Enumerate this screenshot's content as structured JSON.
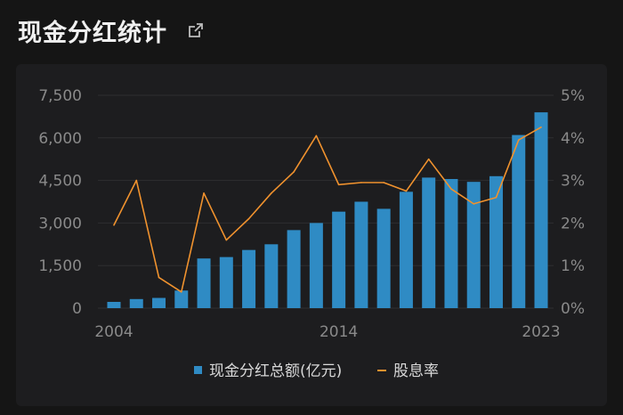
{
  "header": {
    "title": "现金分红统计",
    "share_icon": "share-icon"
  },
  "colors": {
    "bar": "#2f8bc4",
    "line": "#f0922e",
    "grid": "#2e2e30",
    "axis_text": "#8a8a8a"
  },
  "chart_data": {
    "type": "bar+line",
    "title": "",
    "x": [
      2004,
      2005,
      2006,
      2007,
      2008,
      2009,
      2010,
      2011,
      2012,
      2013,
      2014,
      2015,
      2016,
      2017,
      2018,
      2019,
      2020,
      2021,
      2022,
      2023
    ],
    "x_tick_labels": [
      "2004",
      "2014",
      "2023"
    ],
    "y_left": {
      "ticks": [
        "7,500",
        "6,000",
        "4,500",
        "3,000",
        "1,500",
        "0"
      ],
      "range": [
        0,
        7500
      ]
    },
    "y_right": {
      "ticks": [
        "5%",
        "4%",
        "3%",
        "2%",
        "1%",
        "0%"
      ],
      "range": [
        0,
        5
      ]
    },
    "series": [
      {
        "name": "现金分红总额(亿元)",
        "type": "bar",
        "axis": "left",
        "values": [
          220,
          320,
          360,
          620,
          1750,
          1800,
          2050,
          2250,
          2750,
          3000,
          3400,
          3750,
          3500,
          4100,
          4600,
          4550,
          4450,
          4650,
          6100,
          6900
        ]
      },
      {
        "name": "股息率",
        "type": "line",
        "axis": "right",
        "values": [
          1.95,
          3.0,
          0.72,
          0.38,
          2.7,
          1.6,
          2.1,
          2.7,
          3.2,
          4.05,
          2.9,
          2.95,
          2.95,
          2.75,
          3.5,
          2.8,
          2.45,
          2.6,
          3.95,
          4.25
        ]
      }
    ],
    "grid": true,
    "legend": {
      "position": "bottom-center"
    }
  }
}
